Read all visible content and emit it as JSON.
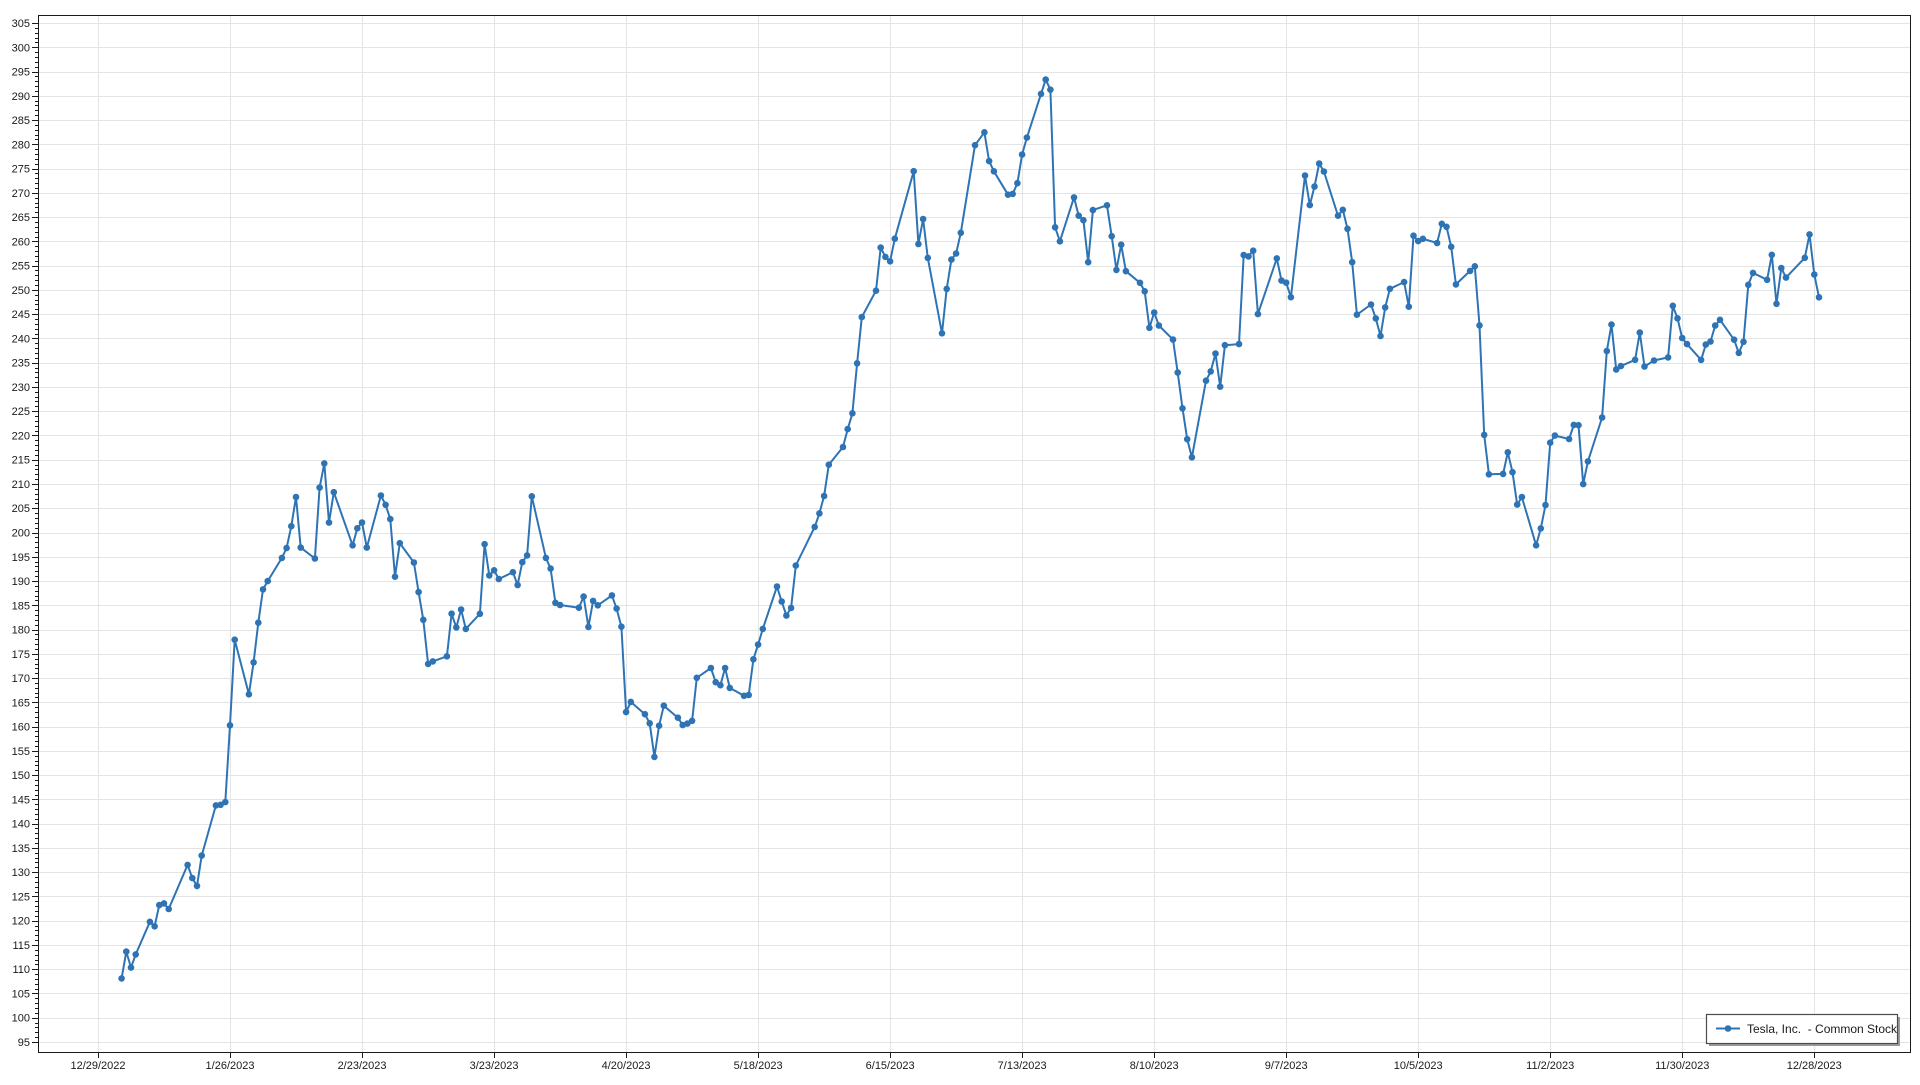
{
  "chart_data": {
    "type": "line",
    "title": "",
    "legend": {
      "label": "Tesla, Inc.  - Common Stock",
      "position": "bottom-right"
    },
    "y_axis": {
      "min": 95,
      "max": 305,
      "major_step": 5,
      "minor_step": 1
    },
    "x_axis": {
      "type": "date",
      "ticks": [
        {
          "date": "2022-12-29",
          "label": "12/29/2022"
        },
        {
          "date": "2023-01-26",
          "label": "1/26/2023"
        },
        {
          "date": "2023-02-23",
          "label": "2/23/2023"
        },
        {
          "date": "2023-03-23",
          "label": "3/23/2023"
        },
        {
          "date": "2023-04-20",
          "label": "4/20/2023"
        },
        {
          "date": "2023-05-18",
          "label": "5/18/2023"
        },
        {
          "date": "2023-06-15",
          "label": "6/15/2023"
        },
        {
          "date": "2023-07-13",
          "label": "7/13/2023"
        },
        {
          "date": "2023-08-10",
          "label": "8/10/2023"
        },
        {
          "date": "2023-09-07",
          "label": "9/7/2023"
        },
        {
          "date": "2023-10-05",
          "label": "10/5/2023"
        },
        {
          "date": "2023-11-02",
          "label": "11/2/2023"
        },
        {
          "date": "2023-11-30",
          "label": "11/30/2023"
        },
        {
          "date": "2023-12-28",
          "label": "12/28/2023"
        }
      ]
    },
    "series": [
      {
        "name": "Tesla, Inc.  - Common Stock",
        "color": "#2e74b5",
        "marker": "circle",
        "points": [
          [
            "2023-01-03",
            108.1
          ],
          [
            "2023-01-04",
            113.64
          ],
          [
            "2023-01-05",
            110.34
          ],
          [
            "2023-01-06",
            113.06
          ],
          [
            "2023-01-09",
            119.77
          ],
          [
            "2023-01-10",
            118.85
          ],
          [
            "2023-01-11",
            123.22
          ],
          [
            "2023-01-12",
            123.56
          ],
          [
            "2023-01-13",
            122.4
          ],
          [
            "2023-01-17",
            131.49
          ],
          [
            "2023-01-18",
            128.78
          ],
          [
            "2023-01-19",
            127.17
          ],
          [
            "2023-01-20",
            133.42
          ],
          [
            "2023-01-23",
            143.75
          ],
          [
            "2023-01-24",
            143.89
          ],
          [
            "2023-01-25",
            144.43
          ],
          [
            "2023-01-26",
            160.27
          ],
          [
            "2023-01-27",
            177.9
          ],
          [
            "2023-01-30",
            166.66
          ],
          [
            "2023-01-31",
            173.22
          ],
          [
            "2023-02-01",
            181.41
          ],
          [
            "2023-02-02",
            188.27
          ],
          [
            "2023-02-03",
            189.98
          ],
          [
            "2023-02-06",
            194.76
          ],
          [
            "2023-02-07",
            196.81
          ],
          [
            "2023-02-08",
            201.29
          ],
          [
            "2023-02-09",
            207.32
          ],
          [
            "2023-02-10",
            196.89
          ],
          [
            "2023-02-13",
            194.64
          ],
          [
            "2023-02-14",
            209.25
          ],
          [
            "2023-02-15",
            214.24
          ],
          [
            "2023-02-16",
            202.04
          ],
          [
            "2023-02-17",
            208.31
          ],
          [
            "2023-02-21",
            197.37
          ],
          [
            "2023-02-22",
            200.86
          ],
          [
            "2023-02-23",
            202.07
          ],
          [
            "2023-02-24",
            196.88
          ],
          [
            "2023-02-27",
            207.63
          ],
          [
            "2023-02-28",
            205.71
          ],
          [
            "2023-03-01",
            202.77
          ],
          [
            "2023-03-02",
            190.9
          ],
          [
            "2023-03-03",
            197.79
          ],
          [
            "2023-03-06",
            193.81
          ],
          [
            "2023-03-07",
            187.71
          ],
          [
            "2023-03-08",
            182.0
          ],
          [
            "2023-03-09",
            172.92
          ],
          [
            "2023-03-10",
            173.44
          ],
          [
            "2023-03-13",
            174.48
          ],
          [
            "2023-03-14",
            183.26
          ],
          [
            "2023-03-15",
            180.45
          ],
          [
            "2023-03-16",
            184.13
          ],
          [
            "2023-03-17",
            180.13
          ],
          [
            "2023-03-20",
            183.25
          ],
          [
            "2023-03-21",
            197.58
          ],
          [
            "2023-03-22",
            191.15
          ],
          [
            "2023-03-23",
            192.22
          ],
          [
            "2023-03-24",
            190.41
          ],
          [
            "2023-03-27",
            191.81
          ],
          [
            "2023-03-28",
            189.19
          ],
          [
            "2023-03-29",
            193.88
          ],
          [
            "2023-03-30",
            195.28
          ],
          [
            "2023-03-31",
            207.46
          ],
          [
            "2023-04-03",
            194.77
          ],
          [
            "2023-04-04",
            192.58
          ],
          [
            "2023-04-05",
            185.52
          ],
          [
            "2023-04-06",
            185.06
          ],
          [
            "2023-04-10",
            184.51
          ],
          [
            "2023-04-11",
            186.79
          ],
          [
            "2023-04-12",
            180.54
          ],
          [
            "2023-04-13",
            185.9
          ],
          [
            "2023-04-14",
            185.0
          ],
          [
            "2023-04-17",
            187.04
          ],
          [
            "2023-04-18",
            184.31
          ],
          [
            "2023-04-19",
            180.59
          ],
          [
            "2023-04-20",
            162.99
          ],
          [
            "2023-04-21",
            165.08
          ],
          [
            "2023-04-24",
            162.55
          ],
          [
            "2023-04-25",
            160.67
          ],
          [
            "2023-04-26",
            153.75
          ],
          [
            "2023-04-27",
            160.19
          ],
          [
            "2023-04-28",
            164.31
          ],
          [
            "2023-05-01",
            161.83
          ],
          [
            "2023-05-02",
            160.31
          ],
          [
            "2023-05-03",
            160.61
          ],
          [
            "2023-05-04",
            161.2
          ],
          [
            "2023-05-05",
            170.06
          ],
          [
            "2023-05-08",
            172.08
          ],
          [
            "2023-05-09",
            169.15
          ],
          [
            "2023-05-10",
            168.54
          ],
          [
            "2023-05-11",
            172.08
          ],
          [
            "2023-05-12",
            167.98
          ],
          [
            "2023-05-15",
            166.35
          ],
          [
            "2023-05-16",
            166.52
          ],
          [
            "2023-05-17",
            173.86
          ],
          [
            "2023-05-18",
            176.89
          ],
          [
            "2023-05-19",
            180.14
          ],
          [
            "2023-05-22",
            188.87
          ],
          [
            "2023-05-23",
            185.77
          ],
          [
            "2023-05-24",
            182.9
          ],
          [
            "2023-05-25",
            184.47
          ],
          [
            "2023-05-26",
            193.17
          ],
          [
            "2023-05-30",
            201.16
          ],
          [
            "2023-05-31",
            203.93
          ],
          [
            "2023-06-01",
            207.52
          ],
          [
            "2023-06-02",
            213.97
          ],
          [
            "2023-06-05",
            217.61
          ],
          [
            "2023-06-06",
            221.31
          ],
          [
            "2023-06-07",
            224.57
          ],
          [
            "2023-06-08",
            234.86
          ],
          [
            "2023-06-09",
            244.4
          ],
          [
            "2023-06-12",
            249.83
          ],
          [
            "2023-06-13",
            258.71
          ],
          [
            "2023-06-14",
            256.79
          ],
          [
            "2023-06-15",
            255.9
          ],
          [
            "2023-06-16",
            260.54
          ],
          [
            "2023-06-20",
            274.45
          ],
          [
            "2023-06-21",
            259.46
          ],
          [
            "2023-06-22",
            264.61
          ],
          [
            "2023-06-23",
            256.6
          ],
          [
            "2023-06-26",
            241.05
          ],
          [
            "2023-06-27",
            250.21
          ],
          [
            "2023-06-28",
            256.24
          ],
          [
            "2023-06-29",
            257.5
          ],
          [
            "2023-06-30",
            261.77
          ],
          [
            "2023-07-03",
            279.82
          ],
          [
            "2023-07-05",
            282.48
          ],
          [
            "2023-07-06",
            276.54
          ],
          [
            "2023-07-07",
            274.43
          ],
          [
            "2023-07-10",
            269.61
          ],
          [
            "2023-07-11",
            269.79
          ],
          [
            "2023-07-12",
            271.99
          ],
          [
            "2023-07-13",
            277.9
          ],
          [
            "2023-07-14",
            281.38
          ],
          [
            "2023-07-17",
            290.38
          ],
          [
            "2023-07-18",
            293.34
          ],
          [
            "2023-07-19",
            291.26
          ],
          [
            "2023-07-20",
            262.9
          ],
          [
            "2023-07-21",
            260.02
          ],
          [
            "2023-07-24",
            269.06
          ],
          [
            "2023-07-25",
            265.28
          ],
          [
            "2023-07-26",
            264.35
          ],
          [
            "2023-07-27",
            255.71
          ],
          [
            "2023-07-28",
            266.44
          ],
          [
            "2023-07-31",
            267.43
          ],
          [
            "2023-08-01",
            261.07
          ],
          [
            "2023-08-02",
            254.11
          ],
          [
            "2023-08-03",
            259.32
          ],
          [
            "2023-08-04",
            253.86
          ],
          [
            "2023-08-07",
            251.45
          ],
          [
            "2023-08-08",
            249.7
          ],
          [
            "2023-08-09",
            242.19
          ],
          [
            "2023-08-10",
            245.34
          ],
          [
            "2023-08-11",
            242.65
          ],
          [
            "2023-08-14",
            239.76
          ],
          [
            "2023-08-15",
            232.96
          ],
          [
            "2023-08-16",
            225.6
          ],
          [
            "2023-08-17",
            219.22
          ],
          [
            "2023-08-18",
            215.49
          ],
          [
            "2023-08-21",
            231.28
          ],
          [
            "2023-08-22",
            233.19
          ],
          [
            "2023-08-23",
            236.86
          ],
          [
            "2023-08-24",
            230.04
          ],
          [
            "2023-08-25",
            238.59
          ],
          [
            "2023-08-28",
            238.82
          ],
          [
            "2023-08-29",
            257.18
          ],
          [
            "2023-08-30",
            256.9
          ],
          [
            "2023-08-31",
            258.08
          ],
          [
            "2023-09-01",
            245.01
          ],
          [
            "2023-09-05",
            256.49
          ],
          [
            "2023-09-06",
            251.92
          ],
          [
            "2023-09-07",
            251.49
          ],
          [
            "2023-09-08",
            248.5
          ],
          [
            "2023-09-11",
            273.58
          ],
          [
            "2023-09-12",
            267.48
          ],
          [
            "2023-09-13",
            271.3
          ],
          [
            "2023-09-14",
            276.04
          ],
          [
            "2023-09-15",
            274.39
          ],
          [
            "2023-09-18",
            265.28
          ],
          [
            "2023-09-19",
            266.5
          ],
          [
            "2023-09-20",
            262.59
          ],
          [
            "2023-09-21",
            255.7
          ],
          [
            "2023-09-22",
            244.88
          ],
          [
            "2023-09-25",
            246.99
          ],
          [
            "2023-09-26",
            244.12
          ],
          [
            "2023-09-27",
            240.5
          ],
          [
            "2023-09-28",
            246.38
          ],
          [
            "2023-09-29",
            250.22
          ],
          [
            "2023-10-02",
            251.6
          ],
          [
            "2023-10-03",
            246.53
          ],
          [
            "2023-10-04",
            261.16
          ],
          [
            "2023-10-05",
            260.05
          ],
          [
            "2023-10-06",
            260.53
          ],
          [
            "2023-10-09",
            259.67
          ],
          [
            "2023-10-10",
            263.62
          ],
          [
            "2023-10-11",
            262.99
          ],
          [
            "2023-10-12",
            258.87
          ],
          [
            "2023-10-13",
            251.12
          ],
          [
            "2023-10-16",
            253.92
          ],
          [
            "2023-10-17",
            254.85
          ],
          [
            "2023-10-18",
            242.68
          ],
          [
            "2023-10-19",
            220.11
          ],
          [
            "2023-10-20",
            211.99
          ],
          [
            "2023-10-23",
            212.08
          ],
          [
            "2023-10-24",
            216.52
          ],
          [
            "2023-10-25",
            212.42
          ],
          [
            "2023-10-26",
            205.76
          ],
          [
            "2023-10-27",
            207.3
          ],
          [
            "2023-10-30",
            197.36
          ],
          [
            "2023-10-31",
            200.84
          ],
          [
            "2023-11-01",
            205.66
          ],
          [
            "2023-11-02",
            218.51
          ],
          [
            "2023-11-03",
            219.96
          ],
          [
            "2023-11-06",
            219.27
          ],
          [
            "2023-11-07",
            222.18
          ],
          [
            "2023-11-08",
            222.11
          ],
          [
            "2023-11-09",
            209.98
          ],
          [
            "2023-11-10",
            214.65
          ],
          [
            "2023-11-13",
            223.71
          ],
          [
            "2023-11-14",
            237.41
          ],
          [
            "2023-11-15",
            242.84
          ],
          [
            "2023-11-16",
            233.59
          ],
          [
            "2023-11-17",
            234.3
          ],
          [
            "2023-11-20",
            235.6
          ],
          [
            "2023-11-21",
            241.2
          ],
          [
            "2023-11-22",
            234.21
          ],
          [
            "2023-11-24",
            235.45
          ],
          [
            "2023-11-27",
            236.08
          ],
          [
            "2023-11-28",
            246.72
          ],
          [
            "2023-11-29",
            244.14
          ],
          [
            "2023-11-30",
            240.08
          ],
          [
            "2023-12-01",
            238.83
          ],
          [
            "2023-12-04",
            235.58
          ],
          [
            "2023-12-05",
            238.72
          ],
          [
            "2023-12-06",
            239.37
          ],
          [
            "2023-12-07",
            242.64
          ],
          [
            "2023-12-08",
            243.84
          ],
          [
            "2023-12-11",
            239.74
          ],
          [
            "2023-12-12",
            237.01
          ],
          [
            "2023-12-13",
            239.29
          ],
          [
            "2023-12-14",
            251.05
          ],
          [
            "2023-12-15",
            253.5
          ],
          [
            "2023-12-18",
            252.08
          ],
          [
            "2023-12-19",
            257.22
          ],
          [
            "2023-12-20",
            247.14
          ],
          [
            "2023-12-21",
            254.5
          ],
          [
            "2023-12-22",
            252.54
          ],
          [
            "2023-12-26",
            256.61
          ],
          [
            "2023-12-27",
            261.44
          ],
          [
            "2023-12-28",
            253.18
          ],
          [
            "2023-12-29",
            248.48
          ]
        ]
      }
    ]
  },
  "palette": {
    "line": "#2e74b5",
    "grid": "#e4e4e4",
    "axis": "#1a1a1a",
    "label": "#1a1a1a",
    "legend_border": "#4d4d4d",
    "legend_shadow": "#9a9a9a",
    "background": "#ffffff"
  }
}
